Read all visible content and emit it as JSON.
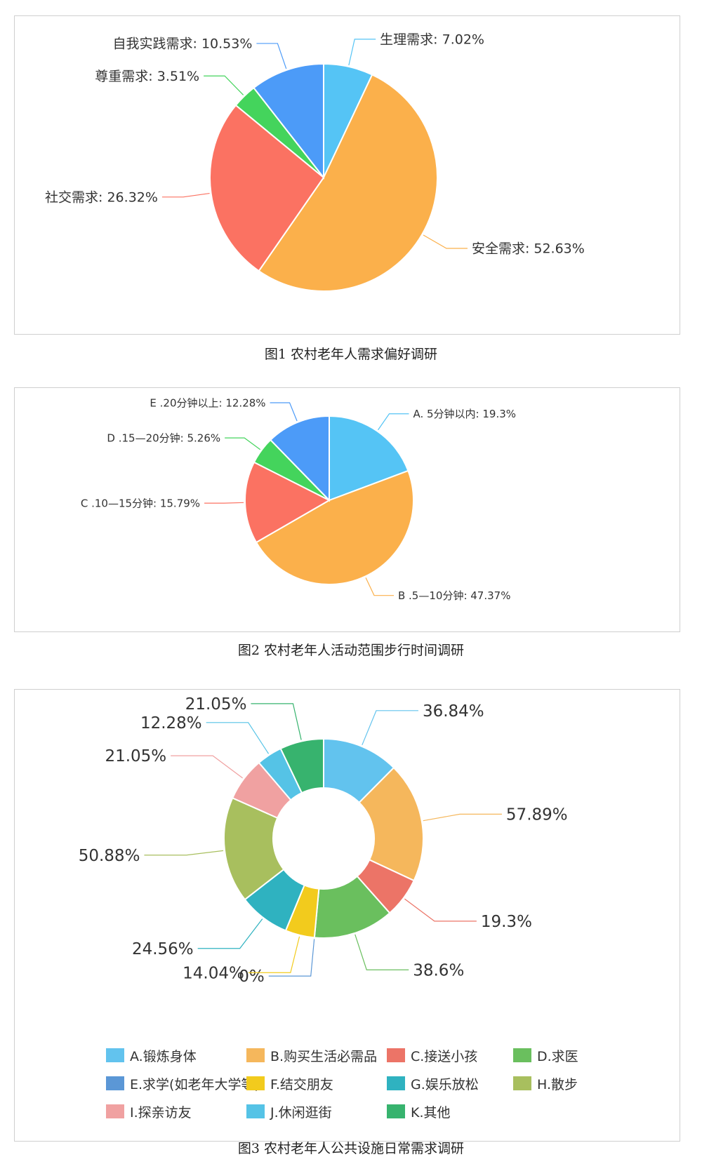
{
  "chart_data": [
    {
      "type": "pie",
      "slices": [
        {
          "label": "生理需求",
          "value": 7.02,
          "text": "生理需求: 7.02%",
          "color": "#55c4f5"
        },
        {
          "label": "安全需求",
          "value": 52.63,
          "text": "安全需求: 52.63%",
          "color": "#fbb04b"
        },
        {
          "label": "社交需求",
          "value": 26.32,
          "text": "社交需求: 26.32%",
          "color": "#fb7262"
        },
        {
          "label": "尊重需求",
          "value": 3.51,
          "text": "尊重需求: 3.51%",
          "color": "#44d45c"
        },
        {
          "label": "自我实践需求",
          "value": 10.53,
          "text": "自我实践需求: 10.53%",
          "color": "#4c9bf8"
        }
      ],
      "caption": "图1 农村老年人需求偏好调研"
    },
    {
      "type": "pie",
      "slices": [
        {
          "label": "A. 5分钟以内",
          "value": 19.3,
          "text": "A. 5分钟以内: 19.3%",
          "color": "#55c4f5"
        },
        {
          "label": "B .5—10分钟",
          "value": 47.37,
          "text": "B .5—10分钟: 47.37%",
          "color": "#fbb04b"
        },
        {
          "label": "C .10—15分钟",
          "value": 15.79,
          "text": "C .10—15分钟: 15.79%",
          "color": "#fb7262"
        },
        {
          "label": "D .15—20分钟",
          "value": 5.26,
          "text": "D .15—20分钟: 5.26%",
          "color": "#44d45c"
        },
        {
          "label": "E .20分钟以上",
          "value": 12.28,
          "text": "E .20分钟以上: 12.28%",
          "color": "#4c9bf8"
        }
      ],
      "caption": "图2 农村老年人活动范围步行时间调研"
    },
    {
      "type": "pie",
      "subtype": "donut",
      "slices": [
        {
          "label": "A.锻炼身体",
          "value": 36.84,
          "text": "36.84%",
          "color": "#62c3ee"
        },
        {
          "label": "B.购买生活必需品",
          "value": 57.89,
          "text": "57.89%",
          "color": "#f5b75c"
        },
        {
          "label": "C.接送小孩",
          "value": 19.3,
          "text": "19.3%",
          "color": "#ec7467"
        },
        {
          "label": "D.求医",
          "value": 38.6,
          "text": "38.6%",
          "color": "#6abf5e"
        },
        {
          "label": "E.求学(如老年大学等)",
          "value": 0,
          "text": "0%",
          "color": "#5b97d6"
        },
        {
          "label": "F.结交朋友",
          "value": 14.04,
          "text": "14.04%",
          "color": "#f2cb1d"
        },
        {
          "label": "G.娱乐放松",
          "value": 24.56,
          "text": "24.56%",
          "color": "#2fb2c0"
        },
        {
          "label": "H.散步",
          "value": 50.88,
          "text": "50.88%",
          "color": "#a8bf5e"
        },
        {
          "label": "I.探亲访友",
          "value": 21.05,
          "text": "21.05%",
          "color": "#f0a1a1"
        },
        {
          "label": "J.休闲逛街",
          "value": 12.28,
          "text": "12.28%",
          "color": "#55c3e6"
        },
        {
          "label": "K.其他",
          "value": 21.05,
          "text": "21.05%",
          "color": "#37b36e"
        }
      ],
      "legend": [
        "A.锻炼身体",
        "B.购买生活必需品",
        "C.接送小孩",
        "D.求医",
        "E.求学(如老年大学等)",
        "F.结交朋友",
        "G.娱乐放松",
        "H.散步",
        "I.探亲访友",
        "J.休闲逛街",
        "K.其他"
      ],
      "legend_position": "bottom",
      "caption": "图3 农村老年人公共设施日常需求调研"
    }
  ]
}
